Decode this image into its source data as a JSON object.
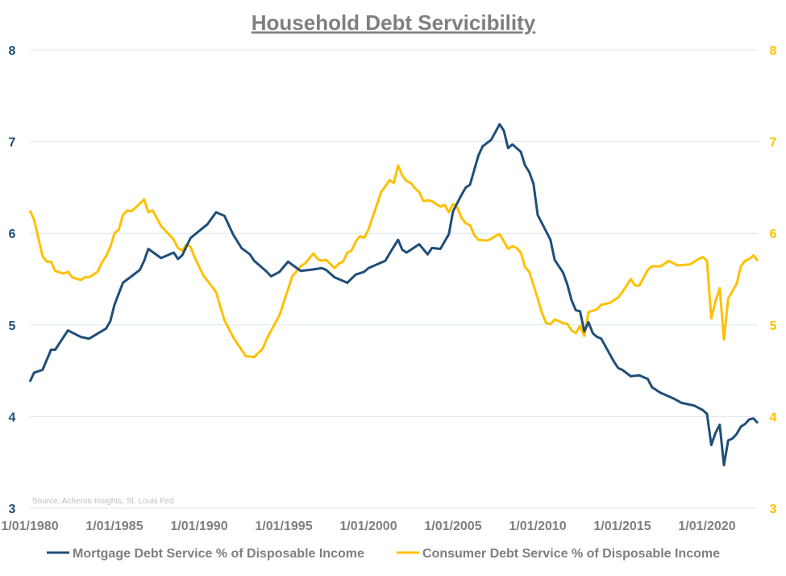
{
  "chart_data": {
    "type": "line",
    "title": "Household Debt Servicibility",
    "source": "Source: Acheron Insights, St. Louis Fed",
    "x_tick_labels": [
      "1/01/1980",
      "1/01/1985",
      "1/01/1990",
      "1/01/1995",
      "1/01/2000",
      "1/01/2005",
      "1/01/2010",
      "1/01/2015",
      "1/01/2020"
    ],
    "x_range": [
      "1980-01",
      "2023-01"
    ],
    "y_left": {
      "range": [
        3,
        8
      ],
      "ticks": [
        "3",
        "4",
        "5",
        "6",
        "7",
        "8"
      ],
      "color": "#1f4e79"
    },
    "y_right": {
      "range": [
        3,
        8
      ],
      "ticks": [
        "3",
        "4",
        "5",
        "6",
        "7",
        "8"
      ],
      "color": "#ffc000"
    },
    "grid": "horizontal",
    "legend_position": "bottom",
    "series": [
      {
        "name": "Mortgage Debt Service % of Disposable Income",
        "color": "#1f4e79",
        "axis": "left",
        "points": [
          [
            "1980-01",
            4.38
          ],
          [
            "1980-04",
            4.48
          ],
          [
            "1980-10",
            4.51
          ],
          [
            "1981-04",
            4.73
          ],
          [
            "1981-07",
            4.73
          ],
          [
            "1982-04",
            4.94
          ],
          [
            "1983-01",
            4.87
          ],
          [
            "1983-07",
            4.85
          ],
          [
            "1984-07",
            4.96
          ],
          [
            "1984-10",
            5.04
          ],
          [
            "1985-01",
            5.22
          ],
          [
            "1985-07",
            5.46
          ],
          [
            "1986-07",
            5.6
          ],
          [
            "1986-10",
            5.7
          ],
          [
            "1987-01",
            5.83
          ],
          [
            "1987-10",
            5.73
          ],
          [
            "1988-07",
            5.79
          ],
          [
            "1988-10",
            5.72
          ],
          [
            "1989-01",
            5.76
          ],
          [
            "1989-07",
            5.95
          ],
          [
            "1990-07",
            6.1
          ],
          [
            "1991-01",
            6.23
          ],
          [
            "1991-07",
            6.19
          ],
          [
            "1992-01",
            5.99
          ],
          [
            "1992-07",
            5.84
          ],
          [
            "1993-01",
            5.77
          ],
          [
            "1993-04",
            5.7
          ],
          [
            "1994-01",
            5.58
          ],
          [
            "1994-04",
            5.53
          ],
          [
            "1994-10",
            5.58
          ],
          [
            "1995-04",
            5.69
          ],
          [
            "1996-01",
            5.59
          ],
          [
            "1996-07",
            5.6
          ],
          [
            "1997-04",
            5.62
          ],
          [
            "1997-07",
            5.6
          ],
          [
            "1998-01",
            5.52
          ],
          [
            "1998-10",
            5.46
          ],
          [
            "1999-04",
            5.55
          ],
          [
            "1999-10",
            5.58
          ],
          [
            "2000-01",
            5.62
          ],
          [
            "2001-01",
            5.7
          ],
          [
            "2001-04",
            5.78
          ],
          [
            "2001-10",
            5.93
          ],
          [
            "2002-01",
            5.82
          ],
          [
            "2002-04",
            5.79
          ],
          [
            "2003-01",
            5.88
          ],
          [
            "2003-07",
            5.77
          ],
          [
            "2003-10",
            5.84
          ],
          [
            "2004-04",
            5.83
          ],
          [
            "2004-10",
            5.99
          ],
          [
            "2005-01",
            6.24
          ],
          [
            "2005-07",
            6.42
          ],
          [
            "2005-10",
            6.5
          ],
          [
            "2006-01",
            6.53
          ],
          [
            "2006-07",
            6.85
          ],
          [
            "2006-10",
            6.95
          ],
          [
            "2007-04",
            7.02
          ],
          [
            "2007-10",
            7.19
          ],
          [
            "2008-01",
            7.12
          ],
          [
            "2008-04",
            6.93
          ],
          [
            "2008-07",
            6.97
          ],
          [
            "2009-01",
            6.89
          ],
          [
            "2009-04",
            6.74
          ],
          [
            "2009-07",
            6.67
          ],
          [
            "2009-10",
            6.54
          ],
          [
            "2010-01",
            6.2
          ],
          [
            "2010-10",
            5.93
          ],
          [
            "2011-01",
            5.71
          ],
          [
            "2011-07",
            5.57
          ],
          [
            "2011-10",
            5.44
          ],
          [
            "2012-01",
            5.27
          ],
          [
            "2012-04",
            5.16
          ],
          [
            "2012-07",
            5.15
          ],
          [
            "2012-10",
            4.93
          ],
          [
            "2013-01",
            5.03
          ],
          [
            "2013-04",
            4.91
          ],
          [
            "2013-07",
            4.87
          ],
          [
            "2013-10",
            4.85
          ],
          [
            "2014-07",
            4.6
          ],
          [
            "2014-10",
            4.53
          ],
          [
            "2015-01",
            4.51
          ],
          [
            "2015-07",
            4.44
          ],
          [
            "2016-01",
            4.45
          ],
          [
            "2016-07",
            4.41
          ],
          [
            "2016-10",
            4.32
          ],
          [
            "2017-04",
            4.26
          ],
          [
            "2017-07",
            4.24
          ],
          [
            "2018-01",
            4.2
          ],
          [
            "2018-07",
            4.15
          ],
          [
            "2019-04",
            4.12
          ],
          [
            "2019-10",
            4.07
          ],
          [
            "2020-01",
            4.03
          ],
          [
            "2020-04",
            3.69
          ],
          [
            "2020-07",
            3.82
          ],
          [
            "2020-10",
            3.91
          ],
          [
            "2021-01",
            3.47
          ],
          [
            "2021-04",
            3.74
          ],
          [
            "2021-07",
            3.76
          ],
          [
            "2021-10",
            3.81
          ],
          [
            "2022-01",
            3.89
          ],
          [
            "2022-04",
            3.92
          ],
          [
            "2022-07",
            3.97
          ],
          [
            "2022-10",
            3.98
          ],
          [
            "2023-01",
            3.93
          ]
        ]
      },
      {
        "name": "Consumer Debt Service % of Disposable Income",
        "color": "#ffc000",
        "axis": "right",
        "points": [
          [
            "1980-01",
            6.25
          ],
          [
            "1980-04",
            6.15
          ],
          [
            "1980-10",
            5.75
          ],
          [
            "1981-01",
            5.69
          ],
          [
            "1981-04",
            5.69
          ],
          [
            "1981-07",
            5.59
          ],
          [
            "1982-01",
            5.56
          ],
          [
            "1982-04",
            5.58
          ],
          [
            "1982-07",
            5.52
          ],
          [
            "1983-01",
            5.49
          ],
          [
            "1983-04",
            5.52
          ],
          [
            "1983-07",
            5.52
          ],
          [
            "1984-01",
            5.58
          ],
          [
            "1984-04",
            5.68
          ],
          [
            "1984-07",
            5.75
          ],
          [
            "1984-10",
            5.85
          ],
          [
            "1985-01",
            6.0
          ],
          [
            "1985-04",
            6.04
          ],
          [
            "1985-07",
            6.2
          ],
          [
            "1985-10",
            6.25
          ],
          [
            "1986-01",
            6.24
          ],
          [
            "1986-04",
            6.28
          ],
          [
            "1986-10",
            6.37
          ],
          [
            "1987-01",
            6.23
          ],
          [
            "1987-04",
            6.25
          ],
          [
            "1987-10",
            6.08
          ],
          [
            "1988-07",
            5.93
          ],
          [
            "1988-10",
            5.84
          ],
          [
            "1989-01",
            5.81
          ],
          [
            "1989-04",
            5.88
          ],
          [
            "1989-07",
            5.85
          ],
          [
            "1989-10",
            5.73
          ],
          [
            "1990-04",
            5.54
          ],
          [
            "1991-01",
            5.36
          ],
          [
            "1991-04",
            5.2
          ],
          [
            "1991-07",
            5.05
          ],
          [
            "1992-01",
            4.87
          ],
          [
            "1992-07",
            4.73
          ],
          [
            "1992-10",
            4.66
          ],
          [
            "1993-04",
            4.65
          ],
          [
            "1993-10",
            4.74
          ],
          [
            "1994-01",
            4.85
          ],
          [
            "1994-10",
            5.11
          ],
          [
            "1995-04",
            5.39
          ],
          [
            "1995-07",
            5.53
          ],
          [
            "1996-01",
            5.64
          ],
          [
            "1996-04",
            5.67
          ],
          [
            "1996-10",
            5.78
          ],
          [
            "1997-01",
            5.72
          ],
          [
            "1997-04",
            5.7
          ],
          [
            "1997-07",
            5.71
          ],
          [
            "1998-01",
            5.62
          ],
          [
            "1998-04",
            5.67
          ],
          [
            "1998-07",
            5.69
          ],
          [
            "1998-10",
            5.79
          ],
          [
            "1999-01",
            5.81
          ],
          [
            "1999-04",
            5.91
          ],
          [
            "1999-07",
            5.97
          ],
          [
            "1999-10",
            5.95
          ],
          [
            "2000-01",
            6.04
          ],
          [
            "2000-10",
            6.45
          ],
          [
            "2001-04",
            6.58
          ],
          [
            "2001-07",
            6.55
          ],
          [
            "2001-10",
            6.74
          ],
          [
            "2002-01",
            6.63
          ],
          [
            "2002-04",
            6.57
          ],
          [
            "2002-07",
            6.55
          ],
          [
            "2002-10",
            6.49
          ],
          [
            "2003-01",
            6.45
          ],
          [
            "2003-04",
            6.35
          ],
          [
            "2003-07",
            6.36
          ],
          [
            "2003-10",
            6.35
          ],
          [
            "2004-04",
            6.29
          ],
          [
            "2004-07",
            6.31
          ],
          [
            "2004-10",
            6.23
          ],
          [
            "2005-01",
            6.32
          ],
          [
            "2005-04",
            6.28
          ],
          [
            "2005-07",
            6.17
          ],
          [
            "2005-10",
            6.11
          ],
          [
            "2006-01",
            6.09
          ],
          [
            "2006-04",
            5.98
          ],
          [
            "2006-07",
            5.93
          ],
          [
            "2007-01",
            5.92
          ],
          [
            "2007-04",
            5.94
          ],
          [
            "2007-07",
            5.97
          ],
          [
            "2007-10",
            5.99
          ],
          [
            "2008-04",
            5.83
          ],
          [
            "2008-07",
            5.86
          ],
          [
            "2008-10",
            5.84
          ],
          [
            "2009-01",
            5.79
          ],
          [
            "2009-04",
            5.63
          ],
          [
            "2009-07",
            5.58
          ],
          [
            "2010-01",
            5.29
          ],
          [
            "2010-04",
            5.13
          ],
          [
            "2010-07",
            5.02
          ],
          [
            "2010-10",
            5.01
          ],
          [
            "2011-01",
            5.06
          ],
          [
            "2011-07",
            5.02
          ],
          [
            "2011-10",
            5.01
          ],
          [
            "2012-01",
            4.94
          ],
          [
            "2012-04",
            4.91
          ],
          [
            "2012-07",
            4.99
          ],
          [
            "2012-10",
            4.88
          ],
          [
            "2013-01",
            5.14
          ],
          [
            "2013-07",
            5.17
          ],
          [
            "2013-10",
            5.22
          ],
          [
            "2014-04",
            5.24
          ],
          [
            "2014-10",
            5.3
          ],
          [
            "2015-01",
            5.36
          ],
          [
            "2015-07",
            5.5
          ],
          [
            "2015-10",
            5.43
          ],
          [
            "2016-01",
            5.43
          ],
          [
            "2016-07",
            5.6
          ],
          [
            "2016-10",
            5.64
          ],
          [
            "2017-04",
            5.64
          ],
          [
            "2017-10",
            5.7
          ],
          [
            "2018-04",
            5.65
          ],
          [
            "2019-01",
            5.66
          ],
          [
            "2019-07",
            5.72
          ],
          [
            "2019-10",
            5.74
          ],
          [
            "2020-01",
            5.7
          ],
          [
            "2020-04",
            5.07
          ],
          [
            "2020-07",
            5.26
          ],
          [
            "2020-10",
            5.4
          ],
          [
            "2021-01",
            4.84
          ],
          [
            "2021-04",
            5.29
          ],
          [
            "2021-10",
            5.45
          ],
          [
            "2022-01",
            5.64
          ],
          [
            "2022-04",
            5.7
          ],
          [
            "2022-07",
            5.72
          ],
          [
            "2022-10",
            5.76
          ],
          [
            "2023-01",
            5.7
          ]
        ]
      }
    ]
  }
}
